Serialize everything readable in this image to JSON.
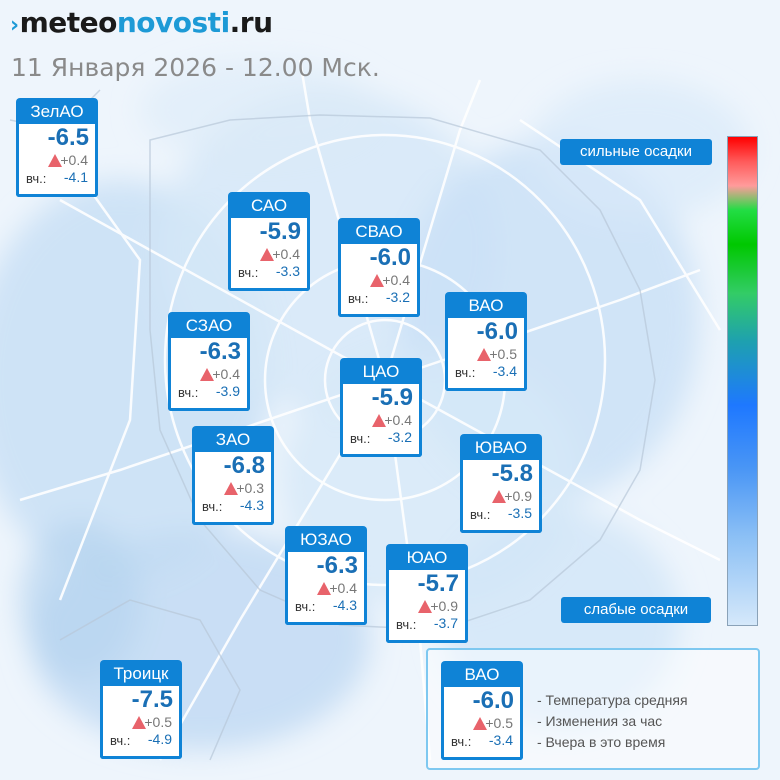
{
  "header": {
    "logo_mark": "›",
    "logo_meteo": "meteo",
    "logo_novosti": "novosti",
    "logo_ru": ".ru",
    "subtitle": "11 Января 2026 - 12.00 Мск."
  },
  "colors": {
    "card_header": "#0f83d6",
    "temperature_text": "#1a6fb5",
    "rise_arrow": "#e8636b",
    "legend_border": "#7ec8f0"
  },
  "districts": [
    {
      "name": "ЗелАО",
      "temp": "-6.5",
      "change": "+0.4",
      "yesterday_label": "вч.:",
      "yesterday": "-4.1"
    },
    {
      "name": "САО",
      "temp": "-5.9",
      "change": "+0.4",
      "yesterday_label": "вч.:",
      "yesterday": "-3.3"
    },
    {
      "name": "СВАО",
      "temp": "-6.0",
      "change": "+0.4",
      "yesterday_label": "вч.:",
      "yesterday": "-3.2"
    },
    {
      "name": "СЗАО",
      "temp": "-6.3",
      "change": "+0.4",
      "yesterday_label": "вч.:",
      "yesterday": "-3.9"
    },
    {
      "name": "ВАО",
      "temp": "-6.0",
      "change": "+0.5",
      "yesterday_label": "вч.:",
      "yesterday": "-3.4"
    },
    {
      "name": "ЦАО",
      "temp": "-5.9",
      "change": "+0.4",
      "yesterday_label": "вч.:",
      "yesterday": "-3.2"
    },
    {
      "name": "ЗАО",
      "temp": "-6.8",
      "change": "+0.3",
      "yesterday_label": "вч.:",
      "yesterday": "-4.3"
    },
    {
      "name": "ЮВАО",
      "temp": "-5.8",
      "change": "+0.9",
      "yesterday_label": "вч.:",
      "yesterday": "-3.5"
    },
    {
      "name": "ЮЗАО",
      "temp": "-6.3",
      "change": "+0.4",
      "yesterday_label": "вч.:",
      "yesterday": "-4.3"
    },
    {
      "name": "ЮАО",
      "temp": "-5.7",
      "change": "+0.9",
      "yesterday_label": "вч.:",
      "yesterday": "-3.7"
    },
    {
      "name": "Троицк",
      "temp": "-7.5",
      "change": "+0.5",
      "yesterday_label": "вч.:",
      "yesterday": "-4.9"
    }
  ],
  "precip_scale": {
    "top_label": "сильные осадки",
    "bottom_label": "слабые осадки"
  },
  "legend": {
    "sample": {
      "name": "ВАО",
      "temp": "-6.0",
      "change": "+0.5",
      "yesterday_label": "вч.:",
      "yesterday": "-3.4"
    },
    "line_temp": "- Температура средняя",
    "line_change": "- Изменения за час",
    "line_yesterday": "- Вчера в это время"
  }
}
